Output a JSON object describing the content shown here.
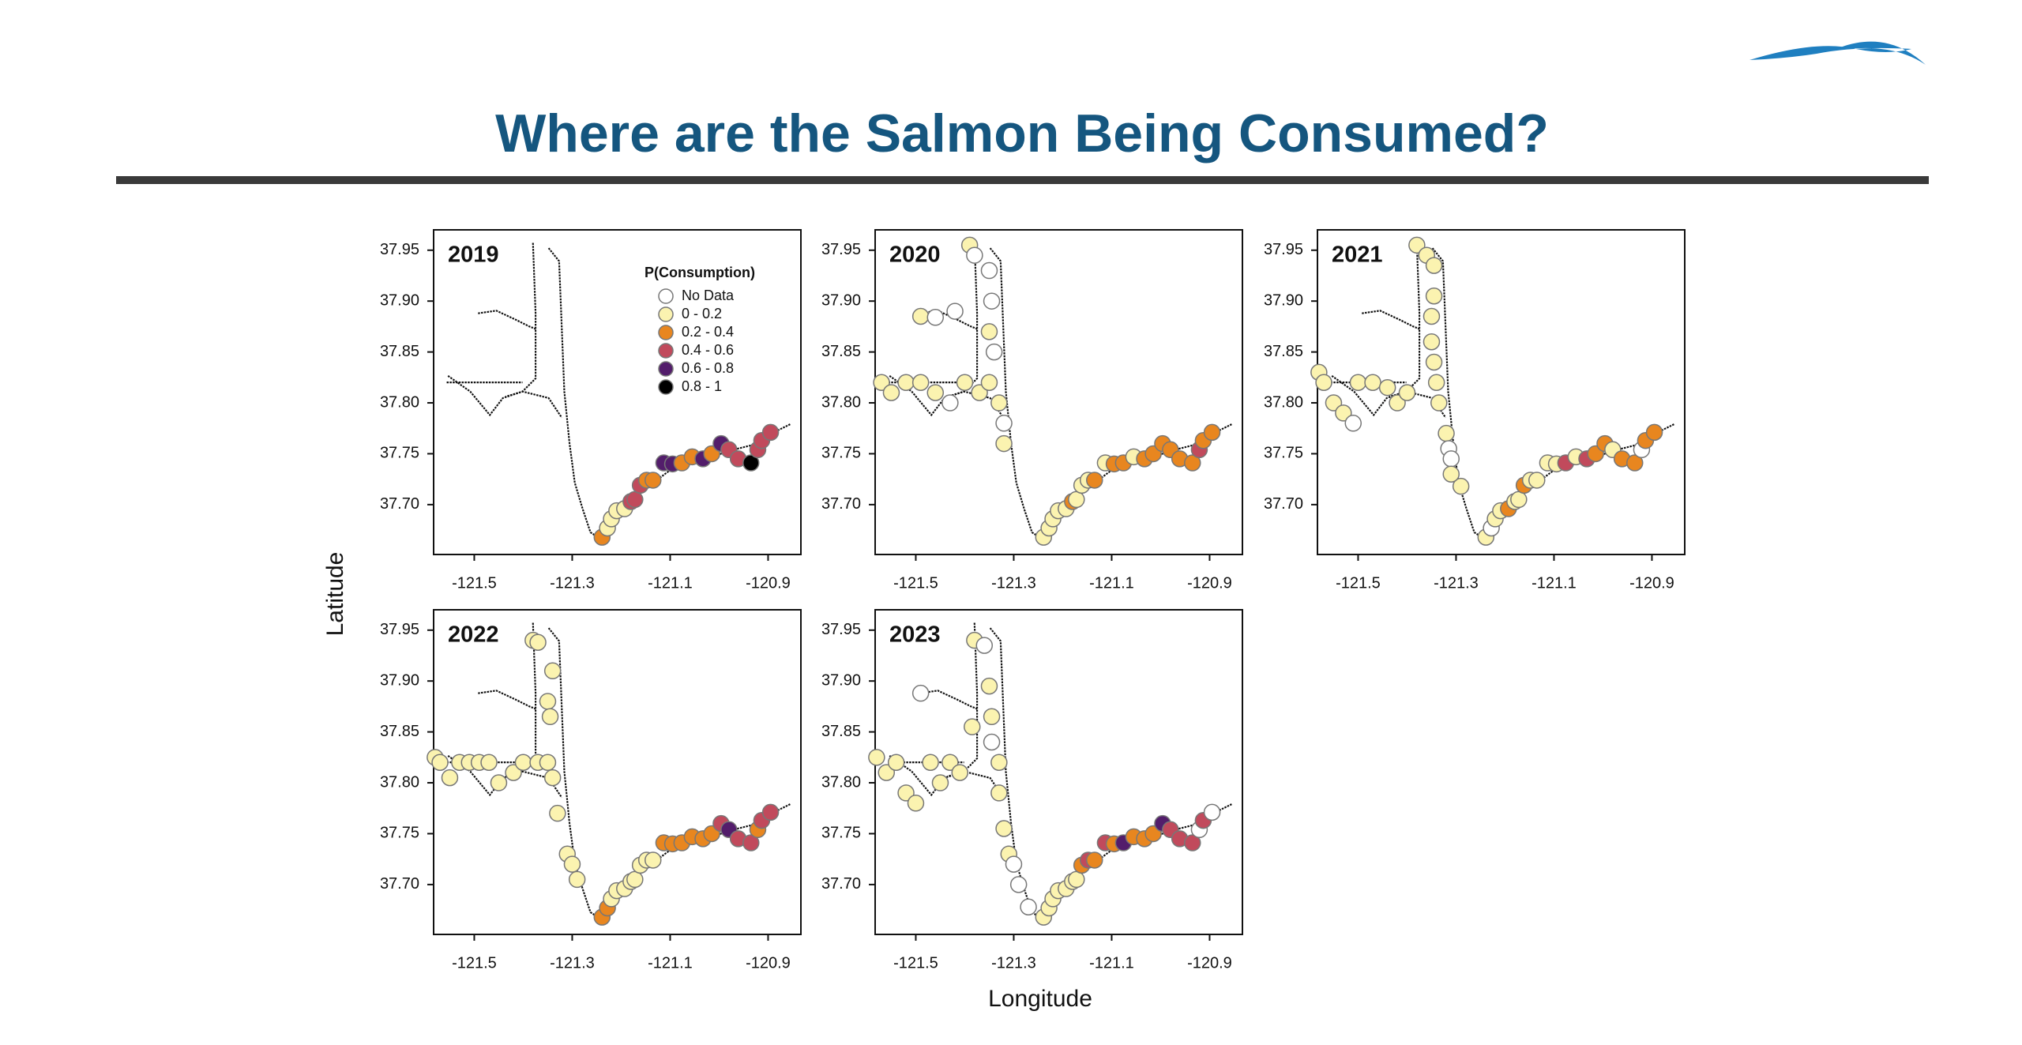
{
  "title": "Where are the Salmon Being Consumed?",
  "x_label": "Longitude",
  "y_label": "Latitude",
  "chart_data": [
    {
      "type": "scatter",
      "title": "2019",
      "x": [
        -121.239,
        -121.228,
        -121.22,
        -121.209,
        -121.193,
        -121.18,
        -121.172,
        -121.161,
        -121.148,
        -121.135,
        -121.113,
        -121.095,
        -121.076,
        -121.055,
        -121.033,
        -121.015,
        -120.996,
        -120.98,
        -120.961,
        -120.935,
        -120.921,
        -120.913,
        -120.895
      ],
      "y": [
        37.668,
        37.677,
        37.686,
        37.694,
        37.696,
        37.703,
        37.705,
        37.719,
        37.724,
        37.724,
        37.741,
        37.74,
        37.741,
        37.747,
        37.745,
        37.75,
        37.76,
        37.754,
        37.745,
        37.741,
        37.754,
        37.763,
        37.771
      ],
      "classes": [
        2,
        1,
        1,
        1,
        1,
        3,
        3,
        3,
        2,
        2,
        4,
        4,
        2,
        2,
        4,
        2,
        4,
        3,
        3,
        5,
        3,
        3,
        3
      ],
      "xlim": [
        -121.583,
        -120.833
      ],
      "ylim": [
        37.651,
        37.97
      ],
      "xticks": [
        -121.5,
        -121.3,
        -121.1,
        -120.9
      ],
      "yticks": [
        {
          "value": 37.7,
          "label": "37.70"
        },
        37.75,
        {
          "value": 37.8,
          "label": "37.80"
        },
        37.85,
        {
          "value": 37.9,
          "label": "37.90"
        },
        37.95
      ],
      "legend": {
        "title": "P(Consumption)",
        "items": [
          {
            "label": "No Data",
            "color": "#ffffff"
          },
          {
            "label": "0 - 0.2",
            "color": "#fbf3b0"
          },
          {
            "label": "0.2 - 0.4",
            "color": "#e8861f"
          },
          {
            "label": "0.4 - 0.6",
            "color": "#c14a5c"
          },
          {
            "label": "0.6 - 0.8",
            "color": "#531d6b"
          },
          {
            "label": "0.8 - 1",
            "color": "#000000"
          }
        ]
      }
    },
    {
      "type": "scatter",
      "title": "2020",
      "x": [
        -121.57,
        -121.55,
        -121.52,
        -121.49,
        -121.46,
        -121.43,
        -121.4,
        -121.37,
        -121.35,
        -121.49,
        -121.46,
        -121.42,
        -121.39,
        -121.38,
        -121.35,
        -121.345,
        -121.35,
        -121.34,
        -121.33,
        -121.32,
        -121.32,
        -121.239,
        -121.228,
        -121.22,
        -121.209,
        -121.193,
        -121.18,
        -121.172,
        -121.161,
        -121.148,
        -121.135,
        -121.113,
        -121.095,
        -121.076,
        -121.055,
        -121.033,
        -121.015,
        -120.996,
        -120.98,
        -120.961,
        -120.935,
        -120.921,
        -120.913,
        -120.895
      ],
      "y": [
        37.82,
        37.81,
        37.82,
        37.82,
        37.81,
        37.8,
        37.82,
        37.81,
        37.82,
        37.885,
        37.884,
        37.89,
        37.955,
        37.945,
        37.93,
        37.9,
        37.87,
        37.85,
        37.8,
        37.78,
        37.76,
        37.668,
        37.677,
        37.686,
        37.694,
        37.696,
        37.703,
        37.705,
        37.719,
        37.724,
        37.724,
        37.741,
        37.74,
        37.741,
        37.747,
        37.745,
        37.75,
        37.76,
        37.754,
        37.745,
        37.741,
        37.754,
        37.763,
        37.771
      ],
      "classes": [
        1,
        1,
        1,
        1,
        1,
        0,
        1,
        1,
        1,
        1,
        0,
        0,
        1,
        0,
        0,
        0,
        1,
        0,
        1,
        0,
        1,
        1,
        1,
        1,
        1,
        1,
        2,
        1,
        1,
        1,
        2,
        1,
        2,
        2,
        1,
        2,
        2,
        2,
        2,
        2,
        2,
        3,
        2,
        2
      ],
      "xlim": [
        -121.583,
        -120.833
      ],
      "ylim": [
        37.651,
        37.97
      ],
      "xticks": [
        -121.5,
        -121.3,
        -121.1,
        -120.9
      ],
      "yticks": [
        {
          "value": 37.7,
          "label": "37.70"
        },
        37.75,
        {
          "value": 37.8,
          "label": "37.80"
        },
        37.85,
        {
          "value": 37.9,
          "label": "37.90"
        },
        37.95
      ]
    },
    {
      "type": "scatter",
      "title": "2021",
      "x": [
        -121.58,
        -121.57,
        -121.55,
        -121.53,
        -121.51,
        -121.5,
        -121.47,
        -121.44,
        -121.42,
        -121.4,
        -121.38,
        -121.36,
        -121.345,
        -121.345,
        -121.35,
        -121.35,
        -121.345,
        -121.34,
        -121.335,
        -121.32,
        -121.315,
        -121.31,
        -121.29,
        -121.31,
        -121.239,
        -121.228,
        -121.22,
        -121.209,
        -121.193,
        -121.18,
        -121.172,
        -121.161,
        -121.148,
        -121.135,
        -121.113,
        -121.095,
        -121.076,
        -121.055,
        -121.033,
        -121.015,
        -120.996,
        -120.98,
        -120.961,
        -120.935,
        -120.921,
        -120.913,
        -120.895
      ],
      "y": [
        37.83,
        37.82,
        37.8,
        37.79,
        37.78,
        37.82,
        37.82,
        37.815,
        37.8,
        37.81,
        37.955,
        37.945,
        37.935,
        37.905,
        37.885,
        37.86,
        37.84,
        37.82,
        37.8,
        37.77,
        37.755,
        37.745,
        37.718,
        37.73,
        37.668,
        37.677,
        37.686,
        37.694,
        37.696,
        37.703,
        37.705,
        37.719,
        37.724,
        37.724,
        37.741,
        37.74,
        37.741,
        37.747,
        37.745,
        37.75,
        37.76,
        37.754,
        37.745,
        37.741,
        37.754,
        37.763,
        37.771
      ],
      "classes": [
        1,
        1,
        1,
        1,
        0,
        1,
        1,
        1,
        1,
        1,
        1,
        1,
        1,
        1,
        1,
        1,
        1,
        1,
        1,
        1,
        0,
        0,
        1,
        1,
        1,
        0,
        1,
        1,
        2,
        1,
        1,
        2,
        1,
        1,
        1,
        1,
        3,
        1,
        3,
        2,
        2,
        1,
        2,
        2,
        0,
        2,
        2
      ],
      "xlim": [
        -121.583,
        -120.833
      ],
      "ylim": [
        37.651,
        37.97
      ],
      "xticks": [
        -121.5,
        -121.3,
        -121.1,
        -120.9
      ],
      "yticks": [
        {
          "value": 37.7,
          "label": "37.70"
        },
        37.75,
        {
          "value": 37.8,
          "label": "37.80"
        },
        37.85,
        {
          "value": 37.9,
          "label": "37.90"
        },
        37.95
      ]
    },
    {
      "type": "scatter",
      "title": "2022",
      "x": [
        -121.58,
        -121.57,
        -121.55,
        -121.53,
        -121.51,
        -121.49,
        -121.47,
        -121.45,
        -121.42,
        -121.4,
        -121.37,
        -121.35,
        -121.34,
        -121.38,
        -121.37,
        -121.35,
        -121.345,
        -121.34,
        -121.33,
        -121.31,
        -121.3,
        -121.29,
        -121.239,
        -121.228,
        -121.22,
        -121.209,
        -121.193,
        -121.18,
        -121.172,
        -121.161,
        -121.148,
        -121.135,
        -121.113,
        -121.095,
        -121.076,
        -121.055,
        -121.033,
        -121.015,
        -120.996,
        -120.98,
        -120.961,
        -120.935,
        -120.921,
        -120.913,
        -120.895
      ],
      "y": [
        37.825,
        37.82,
        37.805,
        37.82,
        37.82,
        37.82,
        37.82,
        37.8,
        37.81,
        37.82,
        37.82,
        37.82,
        37.805,
        37.94,
        37.938,
        37.88,
        37.865,
        37.91,
        37.77,
        37.73,
        37.72,
        37.705,
        37.668,
        37.677,
        37.686,
        37.694,
        37.696,
        37.703,
        37.705,
        37.719,
        37.724,
        37.724,
        37.741,
        37.74,
        37.741,
        37.747,
        37.745,
        37.75,
        37.76,
        37.754,
        37.745,
        37.741,
        37.754,
        37.763,
        37.771
      ],
      "classes": [
        1,
        1,
        1,
        1,
        1,
        1,
        1,
        1,
        1,
        1,
        1,
        1,
        1,
        1,
        1,
        1,
        1,
        1,
        1,
        1,
        1,
        1,
        2,
        2,
        1,
        1,
        1,
        1,
        1,
        1,
        1,
        1,
        2,
        2,
        2,
        2,
        2,
        2,
        3,
        4,
        3,
        3,
        2,
        3,
        3
      ],
      "xlim": [
        -121.583,
        -120.833
      ],
      "ylim": [
        37.651,
        37.97
      ],
      "xticks": [
        -121.5,
        -121.3,
        -121.1,
        -120.9
      ],
      "yticks": [
        {
          "value": 37.7,
          "label": "37.70"
        },
        37.75,
        {
          "value": 37.8,
          "label": "37.80"
        },
        37.85,
        {
          "value": 37.9,
          "label": "37.90"
        },
        37.95
      ]
    },
    {
      "type": "scatter",
      "title": "2023",
      "x": [
        -121.58,
        -121.56,
        -121.54,
        -121.52,
        -121.5,
        -121.49,
        -121.47,
        -121.45,
        -121.43,
        -121.41,
        -121.385,
        -121.38,
        -121.36,
        -121.35,
        -121.345,
        -121.345,
        -121.33,
        -121.33,
        -121.32,
        -121.31,
        -121.3,
        -121.29,
        -121.27,
        -121.239,
        -121.228,
        -121.22,
        -121.209,
        -121.193,
        -121.18,
        -121.172,
        -121.161,
        -121.148,
        -121.135,
        -121.113,
        -121.095,
        -121.076,
        -121.055,
        -121.033,
        -121.015,
        -120.996,
        -120.98,
        -120.961,
        -120.935,
        -120.921,
        -120.913,
        -120.895
      ],
      "y": [
        37.825,
        37.81,
        37.82,
        37.79,
        37.78,
        37.888,
        37.82,
        37.8,
        37.82,
        37.81,
        37.855,
        37.94,
        37.935,
        37.895,
        37.865,
        37.84,
        37.82,
        37.79,
        37.755,
        37.73,
        37.72,
        37.7,
        37.678,
        37.668,
        37.677,
        37.686,
        37.694,
        37.696,
        37.703,
        37.705,
        37.719,
        37.724,
        37.724,
        37.741,
        37.74,
        37.741,
        37.747,
        37.745,
        37.75,
        37.76,
        37.754,
        37.745,
        37.741,
        37.754,
        37.763,
        37.771
      ],
      "classes": [
        1,
        1,
        1,
        1,
        1,
        0,
        1,
        1,
        1,
        1,
        1,
        1,
        0,
        1,
        1,
        0,
        1,
        1,
        1,
        1,
        0,
        0,
        0,
        1,
        1,
        1,
        1,
        1,
        1,
        1,
        2,
        3,
        2,
        3,
        2,
        4,
        2,
        2,
        2,
        4,
        3,
        3,
        3,
        0,
        3,
        0
      ],
      "xlim": [
        -121.583,
        -120.833
      ],
      "ylim": [
        37.651,
        37.97
      ],
      "xticks": [
        -121.5,
        -121.3,
        -121.1,
        -120.9
      ],
      "yticks": [
        {
          "value": 37.7,
          "label": "37.70"
        },
        37.75,
        {
          "value": 37.8,
          "label": "37.80"
        },
        37.85,
        {
          "value": 37.9,
          "label": "37.90"
        },
        37.95
      ]
    }
  ]
}
